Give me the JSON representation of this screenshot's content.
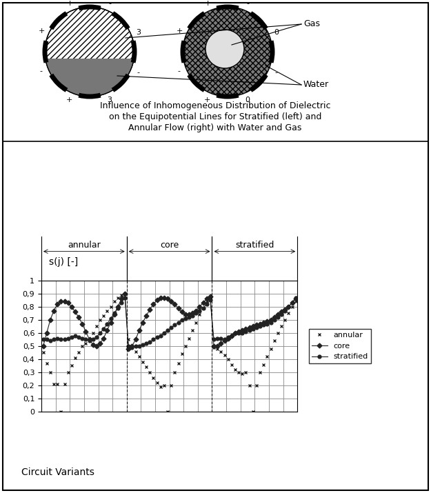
{
  "diagram": {
    "labels": {
      "gas": "Gas",
      "water": "Water"
    },
    "stratified_electrodes": [
      "+",
      "-",
      "3",
      "-",
      "3",
      "+",
      "-",
      "+"
    ],
    "annular_electrodes": [
      "+",
      "-",
      "0",
      "-",
      "0",
      "+",
      "-",
      "+"
    ],
    "caption": "Influence of Inhomogeneous Distribution of Dielectric\non the Equipotential Lines for Stratified (left) and\nAnnular Flow (right) with Water and Gas"
  },
  "chart_data": {
    "type": "line",
    "y_label": "s(j) [-]",
    "x_label": "Circuit Variants",
    "groups": [
      {
        "label": "annular",
        "start": 0.5,
        "end": 24.5
      },
      {
        "label": "core",
        "start": 24.5,
        "end": 48.5
      },
      {
        "label": "stratified",
        "start": 48.5,
        "end": 72.5
      }
    ],
    "x": [
      1,
      2,
      3,
      4,
      5,
      6,
      7,
      8,
      9,
      10,
      11,
      12,
      13,
      14,
      15,
      16,
      17,
      18,
      19,
      20,
      21,
      22,
      23,
      24,
      25,
      26,
      27,
      28,
      29,
      30,
      31,
      32,
      33,
      34,
      35,
      36,
      37,
      38,
      39,
      40,
      41,
      42,
      43,
      44,
      45,
      46,
      47,
      48,
      49,
      50,
      51,
      52,
      53,
      54,
      55,
      56,
      57,
      58,
      59,
      60,
      61,
      62,
      63,
      64,
      65,
      66,
      67,
      68,
      69,
      70,
      71,
      72
    ],
    "series": [
      {
        "name": "annular",
        "color": "#222222",
        "marker": "x",
        "line_style": "none",
        "values": [
          0.45,
          0.37,
          0.3,
          0.21,
          0.21,
          0.0,
          0.21,
          0.3,
          0.35,
          0.41,
          0.45,
          0.5,
          0.52,
          0.55,
          0.6,
          0.65,
          0.7,
          0.73,
          0.77,
          0.8,
          0.84,
          0.87,
          0.89,
          0.9,
          0.55,
          0.5,
          0.46,
          0.42,
          0.38,
          0.34,
          0.3,
          0.26,
          0.22,
          0.19,
          0.2,
          0.0,
          0.2,
          0.3,
          0.37,
          0.44,
          0.5,
          0.56,
          0.62,
          0.68,
          0.74,
          0.79,
          0.84,
          0.88,
          0.49,
          0.48,
          0.46,
          0.43,
          0.4,
          0.36,
          0.32,
          0.3,
          0.29,
          0.3,
          0.2,
          0.0,
          0.2,
          0.3,
          0.36,
          0.42,
          0.48,
          0.54,
          0.6,
          0.65,
          0.7,
          0.75,
          0.8,
          0.84
        ]
      },
      {
        "name": "core",
        "color": "#222222",
        "marker": "diamond",
        "line_style": "solid",
        "values": [
          0.5,
          0.6,
          0.7,
          0.77,
          0.82,
          0.84,
          0.84,
          0.83,
          0.8,
          0.76,
          0.72,
          0.67,
          0.61,
          0.55,
          0.51,
          0.5,
          0.52,
          0.56,
          0.62,
          0.68,
          0.74,
          0.8,
          0.86,
          0.9,
          0.48,
          0.5,
          0.55,
          0.62,
          0.68,
          0.73,
          0.78,
          0.82,
          0.85,
          0.87,
          0.87,
          0.86,
          0.84,
          0.82,
          0.79,
          0.76,
          0.74,
          0.74,
          0.75,
          0.77,
          0.8,
          0.83,
          0.86,
          0.88,
          0.5,
          0.5,
          0.52,
          0.54,
          0.56,
          0.58,
          0.6,
          0.61,
          0.62,
          0.63,
          0.64,
          0.65,
          0.66,
          0.67,
          0.68,
          0.69,
          0.7,
          0.72,
          0.74,
          0.76,
          0.78,
          0.8,
          0.83,
          0.86
        ]
      },
      {
        "name": "stratified",
        "color": "#222222",
        "marker": "circle",
        "line_style": "solid",
        "values": [
          0.55,
          0.55,
          0.54,
          0.55,
          0.56,
          0.55,
          0.55,
          0.56,
          0.57,
          0.58,
          0.57,
          0.56,
          0.55,
          0.54,
          0.55,
          0.57,
          0.6,
          0.63,
          0.67,
          0.71,
          0.75,
          0.79,
          0.83,
          0.87,
          0.5,
          0.49,
          0.5,
          0.5,
          0.51,
          0.52,
          0.53,
          0.55,
          0.57,
          0.58,
          0.6,
          0.62,
          0.64,
          0.66,
          0.68,
          0.7,
          0.71,
          0.72,
          0.73,
          0.75,
          0.77,
          0.79,
          0.82,
          0.85,
          0.55,
          0.56,
          0.56,
          0.55,
          0.57,
          0.58,
          0.6,
          0.6,
          0.6,
          0.61,
          0.62,
          0.63,
          0.64,
          0.65,
          0.66,
          0.67,
          0.68,
          0.7,
          0.72,
          0.74,
          0.77,
          0.8,
          0.83,
          0.87
        ]
      }
    ],
    "xlim": [
      0.5,
      72.5
    ],
    "xticks": [
      0.5,
      4.5,
      8.5,
      12.5,
      16.5,
      20.5,
      24.5,
      28.5,
      32.5,
      36.5,
      40.5,
      44.5,
      48.5,
      52.5,
      56.5,
      60.5,
      64.5,
      68.5,
      72.5
    ],
    "ylim": [
      0,
      1
    ],
    "yticks": [
      0,
      {
        "value": 0.1,
        "label": "0,1"
      },
      {
        "value": 0.2,
        "label": "0,2"
      },
      {
        "value": 0.3,
        "label": "0,3"
      },
      {
        "value": 0.4,
        "label": "0,4"
      },
      {
        "value": 0.5,
        "label": "0,5"
      },
      {
        "value": 0.6,
        "label": "0,6"
      },
      {
        "value": 0.7,
        "label": "0,7"
      },
      {
        "value": 0.8,
        "label": "0,8"
      },
      {
        "value": 0.9,
        "label": "0,9"
      },
      1
    ],
    "grid": true,
    "legend": "right",
    "tick_labels": "y"
  }
}
